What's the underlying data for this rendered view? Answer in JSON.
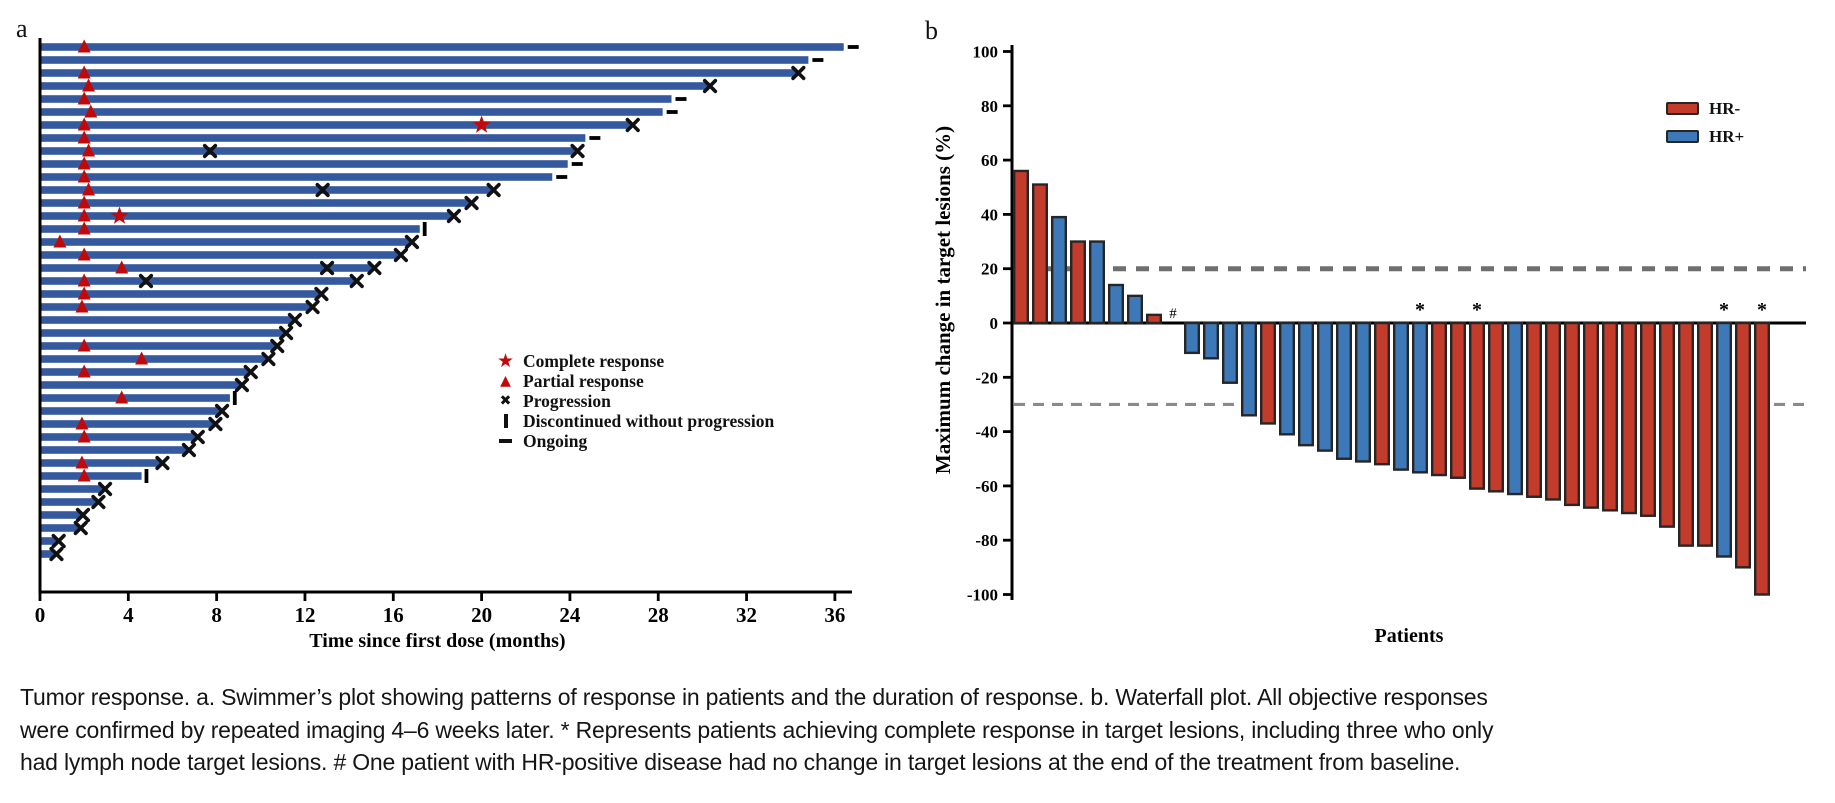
{
  "figure": {
    "panel_a_label": "a",
    "panel_b_label": "b",
    "caption": "Tumor response. a. Swimmer’s plot showing patterns of response in patients and the duration of response. b. Waterfall plot. All objective responses were confirmed by repeated imaging 4–6 weeks later. * Represents patients achieving complete response in target lesions, including three who only had lymph node target lesions. # One patient with HR-positive disease had no change in target lesions at the end of the treatment from baseline."
  },
  "colors": {
    "swimmer_bar": "#35599e",
    "response_red": "#c00a0a",
    "marker_black": "#111111",
    "hr_negative": "#c23b2b",
    "hr_positive": "#3d79b8",
    "bar_outline": "#262626",
    "dashed_line_upper": "#6f6f6f",
    "dashed_line_lower": "#8a8a8a",
    "axis_black": "#000000"
  },
  "chart_data": [
    {
      "type": "bar",
      "subtype": "swimmer",
      "title": "",
      "xlabel": "Time since first dose (months)",
      "xlim": [
        0,
        36
      ],
      "xticks": [
        0,
        4,
        8,
        12,
        16,
        20,
        24,
        28,
        32,
        36
      ],
      "grid": false,
      "legend_position": "center-right",
      "legend": [
        {
          "icon": "star-icon",
          "label": "Complete response"
        },
        {
          "icon": "triangle-icon",
          "label": "Partial response"
        },
        {
          "icon": "x-icon",
          "label": "Progression"
        },
        {
          "icon": "pipe-icon",
          "label": "Discontinued without progression"
        },
        {
          "icon": "dash-icon",
          "label": "Ongoing"
        }
      ],
      "patients": [
        {
          "duration_months": 36.4,
          "partial_response_month": 2.0,
          "complete_response_month": null,
          "progression_months": [],
          "end_marker": "ongoing"
        },
        {
          "duration_months": 34.8,
          "partial_response_month": null,
          "complete_response_month": null,
          "progression_months": [],
          "end_marker": "ongoing"
        },
        {
          "duration_months": 34.3,
          "partial_response_month": 2.0,
          "complete_response_month": null,
          "progression_months": [],
          "end_marker": "progression"
        },
        {
          "duration_months": 30.3,
          "partial_response_month": 2.2,
          "complete_response_month": null,
          "progression_months": [],
          "end_marker": "progression"
        },
        {
          "duration_months": 28.6,
          "partial_response_month": 2.0,
          "complete_response_month": null,
          "progression_months": [],
          "end_marker": "ongoing"
        },
        {
          "duration_months": 28.2,
          "partial_response_month": 2.3,
          "complete_response_month": null,
          "progression_months": [],
          "end_marker": "ongoing"
        },
        {
          "duration_months": 26.8,
          "partial_response_month": 2.0,
          "complete_response_month": 20.0,
          "progression_months": [],
          "end_marker": "progression"
        },
        {
          "duration_months": 24.7,
          "partial_response_month": 2.0,
          "complete_response_month": null,
          "progression_months": [],
          "end_marker": "ongoing"
        },
        {
          "duration_months": 24.3,
          "partial_response_month": 2.2,
          "complete_response_month": null,
          "progression_months": [
            7.7
          ],
          "end_marker": "progression"
        },
        {
          "duration_months": 23.9,
          "partial_response_month": 2.0,
          "complete_response_month": null,
          "progression_months": [],
          "end_marker": "ongoing"
        },
        {
          "duration_months": 23.2,
          "partial_response_month": 2.0,
          "complete_response_month": null,
          "progression_months": [],
          "end_marker": "ongoing"
        },
        {
          "duration_months": 20.5,
          "partial_response_month": 2.2,
          "complete_response_month": null,
          "progression_months": [
            12.8
          ],
          "end_marker": "progression"
        },
        {
          "duration_months": 19.5,
          "partial_response_month": 2.0,
          "complete_response_month": null,
          "progression_months": [],
          "end_marker": "progression"
        },
        {
          "duration_months": 18.7,
          "partial_response_month": 2.0,
          "complete_response_month": 3.6,
          "progression_months": [],
          "end_marker": "progression"
        },
        {
          "duration_months": 17.2,
          "partial_response_month": 2.0,
          "complete_response_month": null,
          "progression_months": [],
          "end_marker": "discontinued"
        },
        {
          "duration_months": 16.8,
          "partial_response_month": 0.9,
          "complete_response_month": null,
          "progression_months": [],
          "end_marker": "progression"
        },
        {
          "duration_months": 16.3,
          "partial_response_month": 2.0,
          "complete_response_month": null,
          "progression_months": [],
          "end_marker": "progression"
        },
        {
          "duration_months": 15.1,
          "partial_response_month": 3.7,
          "complete_response_month": null,
          "progression_months": [
            13.0
          ],
          "end_marker": "progression"
        },
        {
          "duration_months": 14.3,
          "partial_response_month": 2.0,
          "complete_response_month": null,
          "progression_months": [
            4.8
          ],
          "end_marker": "progression"
        },
        {
          "duration_months": 12.7,
          "partial_response_month": 2.0,
          "complete_response_month": null,
          "progression_months": [],
          "end_marker": "progression"
        },
        {
          "duration_months": 12.3,
          "partial_response_month": 1.9,
          "complete_response_month": null,
          "progression_months": [],
          "end_marker": "progression"
        },
        {
          "duration_months": 11.5,
          "partial_response_month": null,
          "complete_response_month": null,
          "progression_months": [],
          "end_marker": "progression"
        },
        {
          "duration_months": 11.1,
          "partial_response_month": null,
          "complete_response_month": null,
          "progression_months": [],
          "end_marker": "progression"
        },
        {
          "duration_months": 10.7,
          "partial_response_month": 2.0,
          "complete_response_month": null,
          "progression_months": [],
          "end_marker": "progression"
        },
        {
          "duration_months": 10.3,
          "partial_response_month": 4.6,
          "complete_response_month": null,
          "progression_months": [],
          "end_marker": "progression"
        },
        {
          "duration_months": 9.5,
          "partial_response_month": 2.0,
          "complete_response_month": null,
          "progression_months": [],
          "end_marker": "progression"
        },
        {
          "duration_months": 9.1,
          "partial_response_month": null,
          "complete_response_month": null,
          "progression_months": [],
          "end_marker": "progression"
        },
        {
          "duration_months": 8.6,
          "partial_response_month": 3.7,
          "complete_response_month": null,
          "progression_months": [],
          "end_marker": "discontinued"
        },
        {
          "duration_months": 8.2,
          "partial_response_month": null,
          "complete_response_month": null,
          "progression_months": [],
          "end_marker": "progression"
        },
        {
          "duration_months": 7.9,
          "partial_response_month": 1.9,
          "complete_response_month": null,
          "progression_months": [],
          "end_marker": "progression"
        },
        {
          "duration_months": 7.1,
          "partial_response_month": 2.0,
          "complete_response_month": null,
          "progression_months": [],
          "end_marker": "progression"
        },
        {
          "duration_months": 6.7,
          "partial_response_month": null,
          "complete_response_month": null,
          "progression_months": [],
          "end_marker": "progression"
        },
        {
          "duration_months": 5.5,
          "partial_response_month": 1.9,
          "complete_response_month": null,
          "progression_months": [],
          "end_marker": "progression"
        },
        {
          "duration_months": 4.6,
          "partial_response_month": 2.0,
          "complete_response_month": null,
          "progression_months": [],
          "end_marker": "discontinued"
        },
        {
          "duration_months": 2.9,
          "partial_response_month": null,
          "complete_response_month": null,
          "progression_months": [],
          "end_marker": "progression"
        },
        {
          "duration_months": 2.6,
          "partial_response_month": null,
          "complete_response_month": null,
          "progression_months": [],
          "end_marker": "progression"
        },
        {
          "duration_months": 1.9,
          "partial_response_month": null,
          "complete_response_month": null,
          "progression_months": [],
          "end_marker": "progression"
        },
        {
          "duration_months": 1.8,
          "partial_response_month": null,
          "complete_response_month": null,
          "progression_months": [],
          "end_marker": "progression"
        },
        {
          "duration_months": 0.8,
          "partial_response_month": null,
          "complete_response_month": null,
          "progression_months": [],
          "end_marker": "progression"
        },
        {
          "duration_months": 0.7,
          "partial_response_month": null,
          "complete_response_month": null,
          "progression_months": [],
          "end_marker": "progression"
        }
      ]
    },
    {
      "type": "bar",
      "subtype": "waterfall",
      "title": "",
      "xlabel": "Patients",
      "ylabel": "Maximum change in target lesions (%)",
      "ylim": [
        -100,
        100
      ],
      "yticks": [
        100,
        80,
        60,
        40,
        20,
        0,
        -20,
        -40,
        -60,
        -80,
        -100
      ],
      "reference_lines": [
        20,
        -30
      ],
      "grid": false,
      "legend_position": "top-right",
      "legend": [
        {
          "label": "HR-",
          "color": "#c23b2b"
        },
        {
          "label": "HR+",
          "color": "#3d79b8"
        }
      ],
      "patients": [
        {
          "value": 56,
          "hr": "HR-",
          "annotation": null
        },
        {
          "value": 51,
          "hr": "HR-",
          "annotation": null
        },
        {
          "value": 39,
          "hr": "HR+",
          "annotation": null
        },
        {
          "value": 30,
          "hr": "HR-",
          "annotation": null
        },
        {
          "value": 30,
          "hr": "HR+",
          "annotation": null
        },
        {
          "value": 14,
          "hr": "HR+",
          "annotation": null
        },
        {
          "value": 10,
          "hr": "HR+",
          "annotation": null
        },
        {
          "value": 3,
          "hr": "HR-",
          "annotation": null
        },
        {
          "value": 0,
          "hr": "HR+",
          "annotation": "#"
        },
        {
          "value": -11,
          "hr": "HR+",
          "annotation": null
        },
        {
          "value": -13,
          "hr": "HR+",
          "annotation": null
        },
        {
          "value": -22,
          "hr": "HR+",
          "annotation": null
        },
        {
          "value": -34,
          "hr": "HR+",
          "annotation": null
        },
        {
          "value": -37,
          "hr": "HR-",
          "annotation": null
        },
        {
          "value": -41,
          "hr": "HR+",
          "annotation": null
        },
        {
          "value": -45,
          "hr": "HR+",
          "annotation": null
        },
        {
          "value": -47,
          "hr": "HR+",
          "annotation": null
        },
        {
          "value": -50,
          "hr": "HR+",
          "annotation": null
        },
        {
          "value": -51,
          "hr": "HR+",
          "annotation": null
        },
        {
          "value": -52,
          "hr": "HR-",
          "annotation": null
        },
        {
          "value": -54,
          "hr": "HR+",
          "annotation": null
        },
        {
          "value": -55,
          "hr": "HR+",
          "annotation": "*"
        },
        {
          "value": -56,
          "hr": "HR-",
          "annotation": null
        },
        {
          "value": -57,
          "hr": "HR-",
          "annotation": null
        },
        {
          "value": -61,
          "hr": "HR-",
          "annotation": "*"
        },
        {
          "value": -62,
          "hr": "HR-",
          "annotation": null
        },
        {
          "value": -63,
          "hr": "HR+",
          "annotation": null
        },
        {
          "value": -64,
          "hr": "HR-",
          "annotation": null
        },
        {
          "value": -65,
          "hr": "HR-",
          "annotation": null
        },
        {
          "value": -67,
          "hr": "HR-",
          "annotation": null
        },
        {
          "value": -68,
          "hr": "HR-",
          "annotation": null
        },
        {
          "value": -69,
          "hr": "HR-",
          "annotation": null
        },
        {
          "value": -70,
          "hr": "HR-",
          "annotation": null
        },
        {
          "value": -71,
          "hr": "HR-",
          "annotation": null
        },
        {
          "value": -75,
          "hr": "HR-",
          "annotation": null
        },
        {
          "value": -82,
          "hr": "HR-",
          "annotation": null
        },
        {
          "value": -82,
          "hr": "HR-",
          "annotation": null
        },
        {
          "value": -86,
          "hr": "HR+",
          "annotation": "*"
        },
        {
          "value": -90,
          "hr": "HR-",
          "annotation": null
        },
        {
          "value": -100,
          "hr": "HR-",
          "annotation": "*"
        }
      ]
    }
  ]
}
